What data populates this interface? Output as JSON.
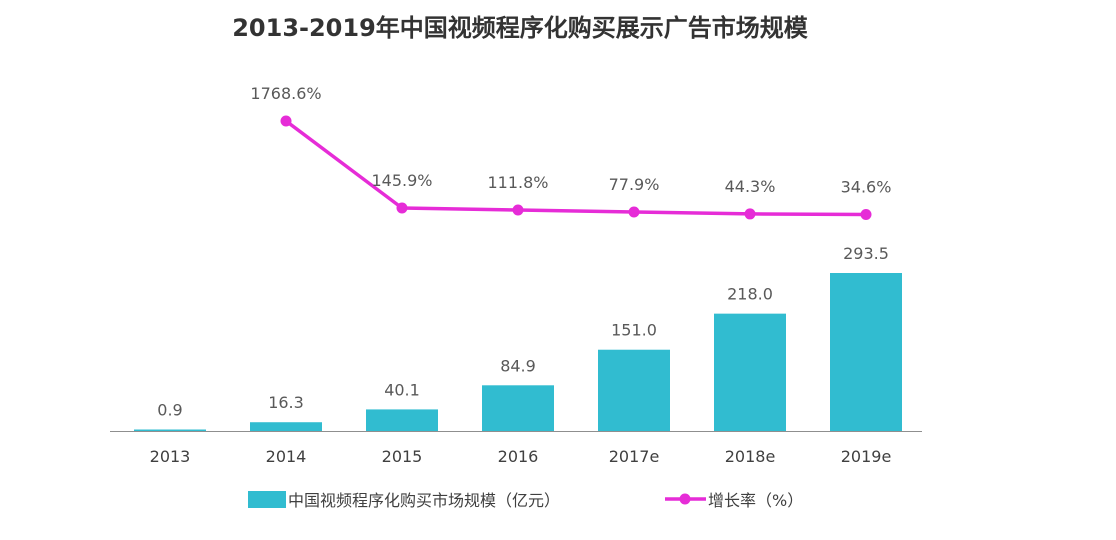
{
  "chart_data": {
    "type": "bar",
    "title": "2013-2019年中国视频程序化购买展示广告市场规模",
    "categories": [
      "2013",
      "2014",
      "2015",
      "2016",
      "2017e",
      "2018e",
      "2019e"
    ],
    "series": [
      {
        "name": "中国视频程序化购买市场规模（亿元）",
        "type": "bar",
        "color": "#31BCD0",
        "values": [
          0.9,
          16.3,
          40.1,
          84.9,
          151.0,
          218.0,
          293.5
        ],
        "labels": [
          "0.9",
          "16.3",
          "40.1",
          "84.9",
          "151.0",
          "218.0",
          "293.5"
        ]
      },
      {
        "name": "增长率（%）",
        "type": "line",
        "color": "#E62CD7",
        "values": [
          null,
          1768.6,
          145.9,
          111.8,
          77.9,
          44.3,
          34.6
        ],
        "labels": [
          "",
          "1768.6%",
          "145.9%",
          "111.8%",
          "77.9%",
          "44.3%",
          "34.6%"
        ]
      }
    ],
    "xlabel": "",
    "ylabel": "",
    "grid": false,
    "legend": "bottom"
  }
}
